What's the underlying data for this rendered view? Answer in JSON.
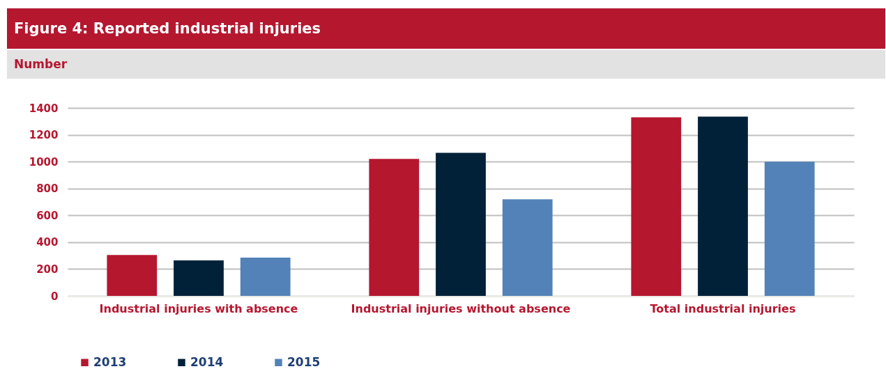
{
  "chart_data": {
    "type": "bar",
    "title": "Figure 4: Reported industrial injuries",
    "subtitle": "Number",
    "categories": [
      "Industrial injuries with absence",
      "Industrial injuries without absence",
      "Total industrial injuries"
    ],
    "series": [
      {
        "name": "2013",
        "color": "#b5172f",
        "values": [
          305,
          1020,
          1330
        ]
      },
      {
        "name": "2014",
        "color": "#012138",
        "values": [
          265,
          1065,
          1335
        ]
      },
      {
        "name": "2015",
        "color": "#5282b8",
        "values": [
          285,
          720,
          1000
        ]
      }
    ],
    "ylim": [
      0,
      1400
    ],
    "yticks": [
      0,
      200,
      400,
      600,
      800,
      1000,
      1200,
      1400
    ],
    "grid": "y",
    "legend": "bottom"
  }
}
